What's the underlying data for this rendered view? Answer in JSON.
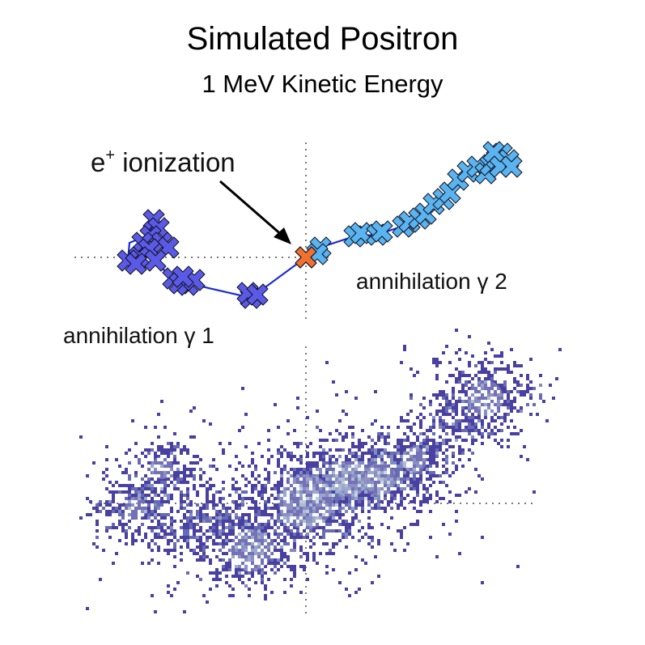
{
  "title": "Simulated Positron",
  "subtitle": "1 MeV Kinetic Energy",
  "labels": {
    "positron": "e",
    "positron_sup": "+",
    "ionization": " ionization",
    "gamma1": "annihilation γ 1",
    "gamma2": "annihilation γ 2"
  },
  "colors": {
    "gamma1": "#5a5ae6",
    "gamma2": "#5ab4f0",
    "positron": "#f07030",
    "track": "#1a2ad8",
    "density_low": "#2a1470",
    "density_high": "#e8f0f0"
  }
}
